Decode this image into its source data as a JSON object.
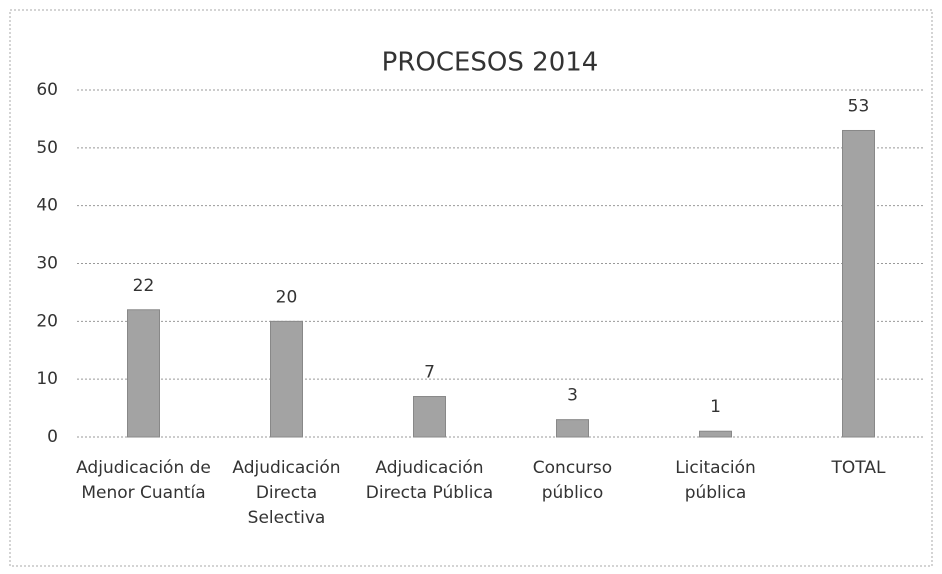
{
  "chart_data": {
    "type": "bar",
    "title": "PROCESOS 2014",
    "categories": [
      "Adjudicación de Menor Cuantía",
      "Adjudicación Directa Selectiva",
      "Adjudicación Directa Pública",
      "Concurso público",
      "Licitación pública",
      "TOTAL"
    ],
    "values": [
      22,
      20,
      7,
      3,
      1,
      53
    ],
    "color": "#a3a3a3",
    "ylim": [
      0,
      60
    ],
    "yticks": [
      0,
      10,
      20,
      30,
      40,
      50,
      60
    ],
    "grid": true
  }
}
